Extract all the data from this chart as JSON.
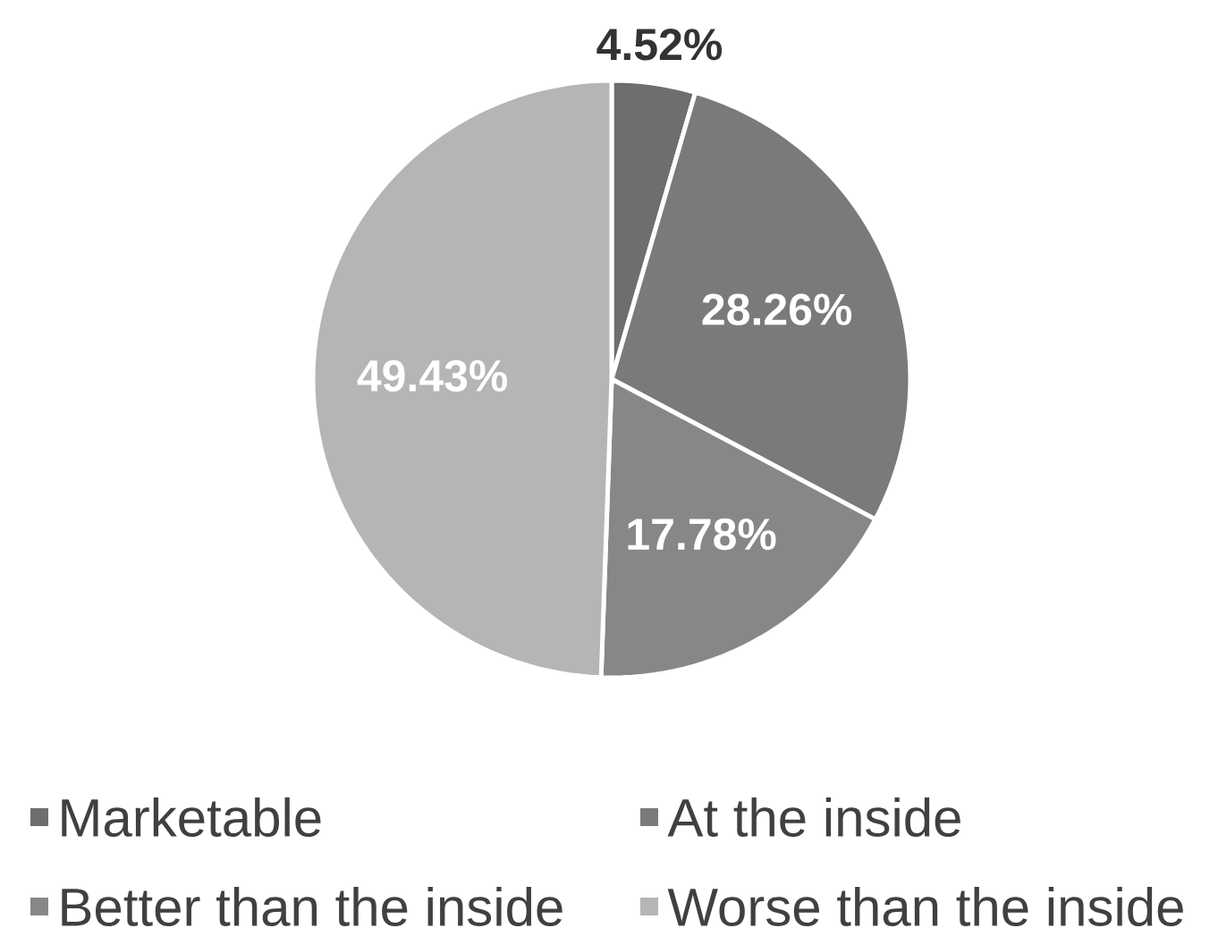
{
  "chart_data": {
    "type": "pie",
    "categories": [
      "Marketable",
      "At the inside",
      "Better than the inside",
      "Worse than the inside"
    ],
    "values": [
      4.52,
      28.26,
      17.78,
      49.43
    ],
    "colors": [
      "#6e6e6e",
      "#7a7a7a",
      "#878787",
      "#b5b5b5"
    ],
    "value_labels": [
      "4.52%",
      "28.26%",
      "17.78%",
      "49.43%"
    ],
    "legend": "bottom"
  }
}
